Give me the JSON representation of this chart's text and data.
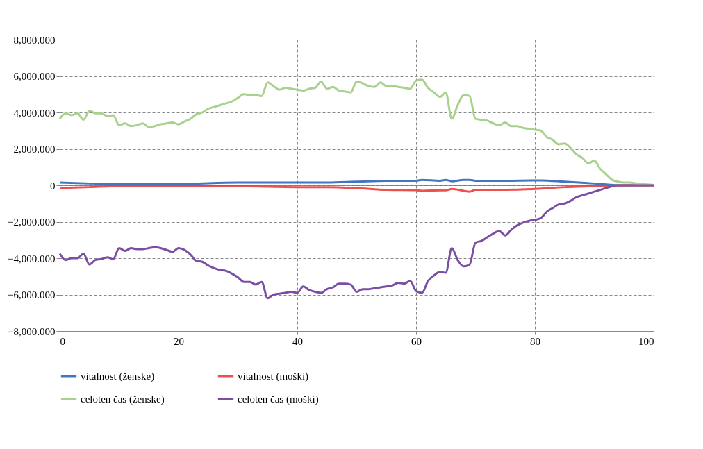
{
  "chart_data": {
    "type": "line",
    "x": [
      0,
      1,
      2,
      3,
      4,
      5,
      6,
      7,
      8,
      9,
      10,
      11,
      12,
      13,
      14,
      15,
      16,
      17,
      18,
      19,
      20,
      21,
      22,
      23,
      24,
      25,
      26,
      27,
      28,
      29,
      30,
      31,
      32,
      33,
      34,
      35,
      36,
      37,
      38,
      39,
      40,
      41,
      42,
      43,
      44,
      45,
      46,
      47,
      48,
      49,
      50,
      51,
      52,
      53,
      54,
      55,
      56,
      57,
      58,
      59,
      60,
      61,
      62,
      63,
      64,
      65,
      66,
      67,
      68,
      69,
      70,
      71,
      72,
      73,
      74,
      75,
      76,
      77,
      78,
      79,
      80,
      81,
      82,
      83,
      84,
      85,
      86,
      87,
      88,
      89,
      90,
      91,
      92,
      93,
      94,
      95,
      96,
      97,
      98,
      99,
      100
    ],
    "series": [
      {
        "name": "vitalnost (ženske)",
        "color": "#4275c2",
        "x": [
          0,
          5,
          10,
          20,
          30,
          40,
          45,
          50,
          55,
          60,
          61,
          64,
          65,
          66,
          68,
          69,
          70,
          75,
          80,
          81,
          85,
          90,
          95,
          100
        ],
        "values": [
          150,
          100,
          80,
          80,
          150,
          150,
          150,
          200,
          250,
          250,
          300,
          250,
          300,
          220,
          300,
          300,
          250,
          250,
          270,
          270,
          200,
          100,
          0,
          0
        ]
      },
      {
        "name": "vitalnost (moški)",
        "color": "#f0504d",
        "x": [
          0,
          5,
          10,
          20,
          30,
          40,
          45,
          50,
          55,
          60,
          61,
          64,
          65,
          66,
          68,
          69,
          70,
          75,
          80,
          81,
          85,
          90,
          95,
          100
        ],
        "values": [
          -150,
          -100,
          -50,
          -50,
          -50,
          -100,
          -100,
          -150,
          -250,
          -270,
          -300,
          -280,
          -280,
          -200,
          -300,
          -350,
          -250,
          -250,
          -200,
          -180,
          -100,
          -50,
          0,
          0
        ]
      },
      {
        "name": "celoten čas (ženske)",
        "color": "#a9d18e",
        "values": [
          3650,
          3950,
          3850,
          3950,
          3600,
          4100,
          3950,
          3950,
          3800,
          3850,
          3300,
          3400,
          3250,
          3300,
          3400,
          3200,
          3250,
          3350,
          3400,
          3450,
          3350,
          3500,
          3650,
          3900,
          4000,
          4200,
          4300,
          4400,
          4500,
          4600,
          4800,
          5000,
          4950,
          4950,
          4900,
          5650,
          5450,
          5250,
          5350,
          5300,
          5250,
          5200,
          5300,
          5350,
          5700,
          5300,
          5400,
          5200,
          5150,
          5100,
          5700,
          5600,
          5450,
          5400,
          5650,
          5450,
          5450,
          5400,
          5350,
          5300,
          5750,
          5800,
          5350,
          5100,
          4850,
          5100,
          3650,
          4400,
          4950,
          4900,
          3650,
          3600,
          3550,
          3400,
          3300,
          3450,
          3250,
          3250,
          3150,
          3100,
          3050,
          3000,
          2650,
          2500,
          2250,
          2300,
          2050,
          1700,
          1500,
          1200,
          1350,
          900,
          600,
          300,
          200,
          150,
          150,
          100,
          70,
          50,
          20
        ]
      },
      {
        "name": "celoten čas (moški)",
        "color": "#7a4fa3",
        "values": [
          -3750,
          -4100,
          -4000,
          -4000,
          -3750,
          -4350,
          -4100,
          -4050,
          -3950,
          -4050,
          -3450,
          -3600,
          -3450,
          -3500,
          -3500,
          -3450,
          -3400,
          -3450,
          -3550,
          -3650,
          -3450,
          -3550,
          -3800,
          -4150,
          -4200,
          -4400,
          -4550,
          -4650,
          -4700,
          -4850,
          -5050,
          -5300,
          -5300,
          -5450,
          -5300,
          -6200,
          -6000,
          -5950,
          -5900,
          -5850,
          -5900,
          -5550,
          -5750,
          -5850,
          -5900,
          -5700,
          -5600,
          -5400,
          -5400,
          -5450,
          -5850,
          -5700,
          -5700,
          -5650,
          -5600,
          -5550,
          -5500,
          -5350,
          -5400,
          -5250,
          -5800,
          -5900,
          -5250,
          -4950,
          -4750,
          -4800,
          -3450,
          -4100,
          -4450,
          -4350,
          -3150,
          -3050,
          -2850,
          -2650,
          -2500,
          -2750,
          -2450,
          -2200,
          -2050,
          -1950,
          -1900,
          -1800,
          -1450,
          -1250,
          -1050,
          -1000,
          -850,
          -650,
          -550,
          -450,
          -350,
          -250,
          -150,
          -50,
          0,
          0,
          0,
          0,
          0,
          0,
          0
        ]
      }
    ],
    "xlim": [
      0,
      100
    ],
    "xticks": [
      0,
      20,
      40,
      60,
      80,
      100
    ],
    "ylim": [
      -8000,
      8000
    ],
    "yticks": [
      {
        "value": -8000,
        "label": "−8,000.000"
      },
      {
        "value": -6000,
        "label": "−6,000.000"
      },
      {
        "value": -4000,
        "label": "−4,000.000"
      },
      {
        "value": -2000,
        "label": "−2,000.000"
      },
      0,
      {
        "value": 2000,
        "label": "2,000.000"
      },
      {
        "value": 4000,
        "label": "4,000.000"
      },
      {
        "value": 6000,
        "label": "6,000.000"
      },
      {
        "value": 8000,
        "label": "8,000.000"
      }
    ],
    "ref_lines": [
      {
        "axis": "y",
        "value": 0,
        "color": "#707070"
      }
    ],
    "grid": true,
    "legend": "bottom",
    "marker": "none",
    "line_style": "solid"
  }
}
